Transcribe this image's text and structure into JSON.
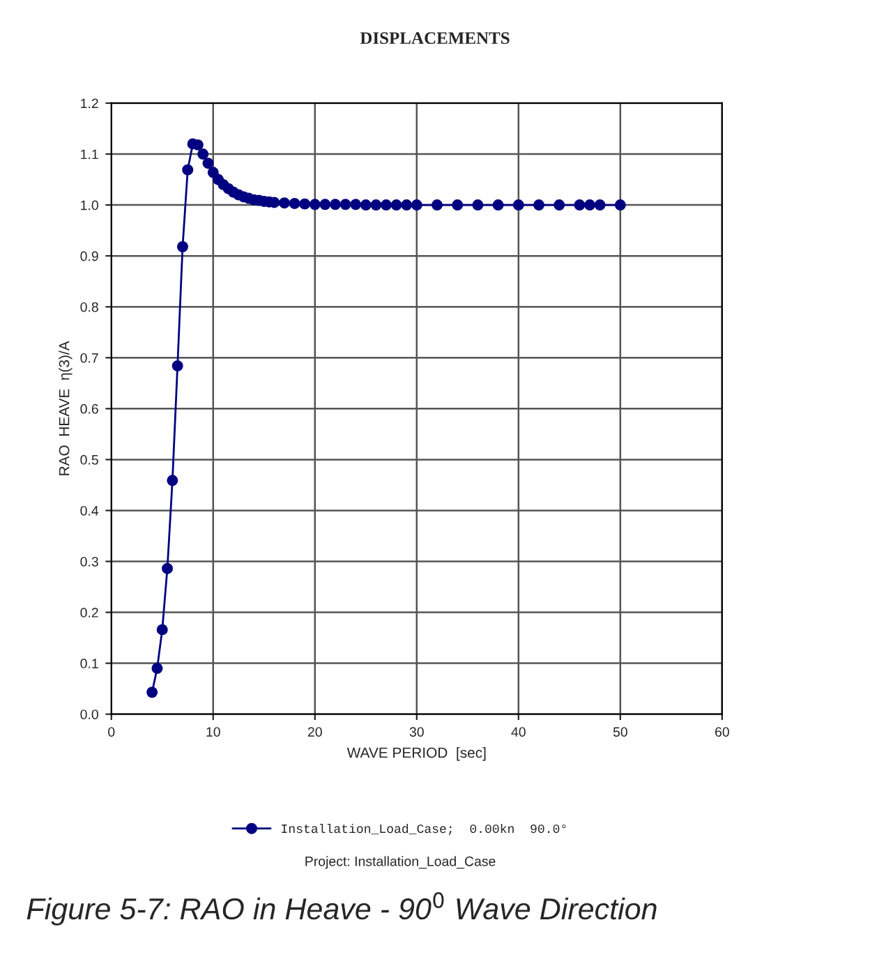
{
  "chart_data": {
    "type": "line",
    "title": "DISPLACEMENTS",
    "xlabel": "WAVE PERIOD  [sec]",
    "ylabel": "RAO  HEAVE  η(3)/A",
    "x": [
      4,
      4.5,
      5,
      5.5,
      6,
      6.5,
      7,
      7.5,
      8,
      8.5,
      9,
      9.5,
      10,
      10.5,
      11,
      11.5,
      12,
      12.5,
      13,
      13.5,
      14,
      14.5,
      15,
      15.5,
      16,
      17,
      18,
      19,
      20,
      21,
      22,
      23,
      24,
      25,
      26,
      27,
      28,
      29,
      30,
      32,
      34,
      36,
      38,
      40,
      42,
      44,
      46,
      47,
      48,
      50
    ],
    "series": [
      {
        "name": "Installation_Load_Case;  0.00kn  90.0°",
        "color": "#000080",
        "values": [
          0.043,
          0.09,
          0.166,
          0.286,
          0.459,
          0.684,
          0.918,
          1.069,
          1.12,
          1.118,
          1.1,
          1.082,
          1.064,
          1.05,
          1.04,
          1.032,
          1.025,
          1.02,
          1.016,
          1.013,
          1.01,
          1.009,
          1.007,
          1.006,
          1.005,
          1.004,
          1.003,
          1.002,
          1.001,
          1.001,
          1.001,
          1.001,
          1.001,
          1.0,
          1.0,
          1.0,
          1.0,
          1.0,
          1.0,
          1.0,
          1.0,
          1.0,
          1.0,
          1.0,
          1.0,
          1.0,
          1.0,
          1.0,
          1.0,
          1.0
        ]
      }
    ],
    "xlim": [
      0,
      60
    ],
    "xticks": [
      0,
      10,
      20,
      30,
      40,
      50,
      60
    ],
    "ylim": [
      0,
      1.2
    ],
    "yticks": [
      {
        "value": 0,
        "label": "0.0"
      },
      0.1,
      0.2,
      0.3,
      0.4,
      0.5,
      0.6,
      0.7,
      0.8,
      0.9,
      {
        "value": 1,
        "label": "1.0"
      },
      1.1,
      1.2
    ],
    "grid": true,
    "legend": "bottom",
    "marker": "circle",
    "line_style": "solid",
    "annotations": [
      "Project: Installation_Load_Case",
      "Figure 5-7: RAO in Heave - 90$^{0}$ Wave Direction"
    ]
  }
}
